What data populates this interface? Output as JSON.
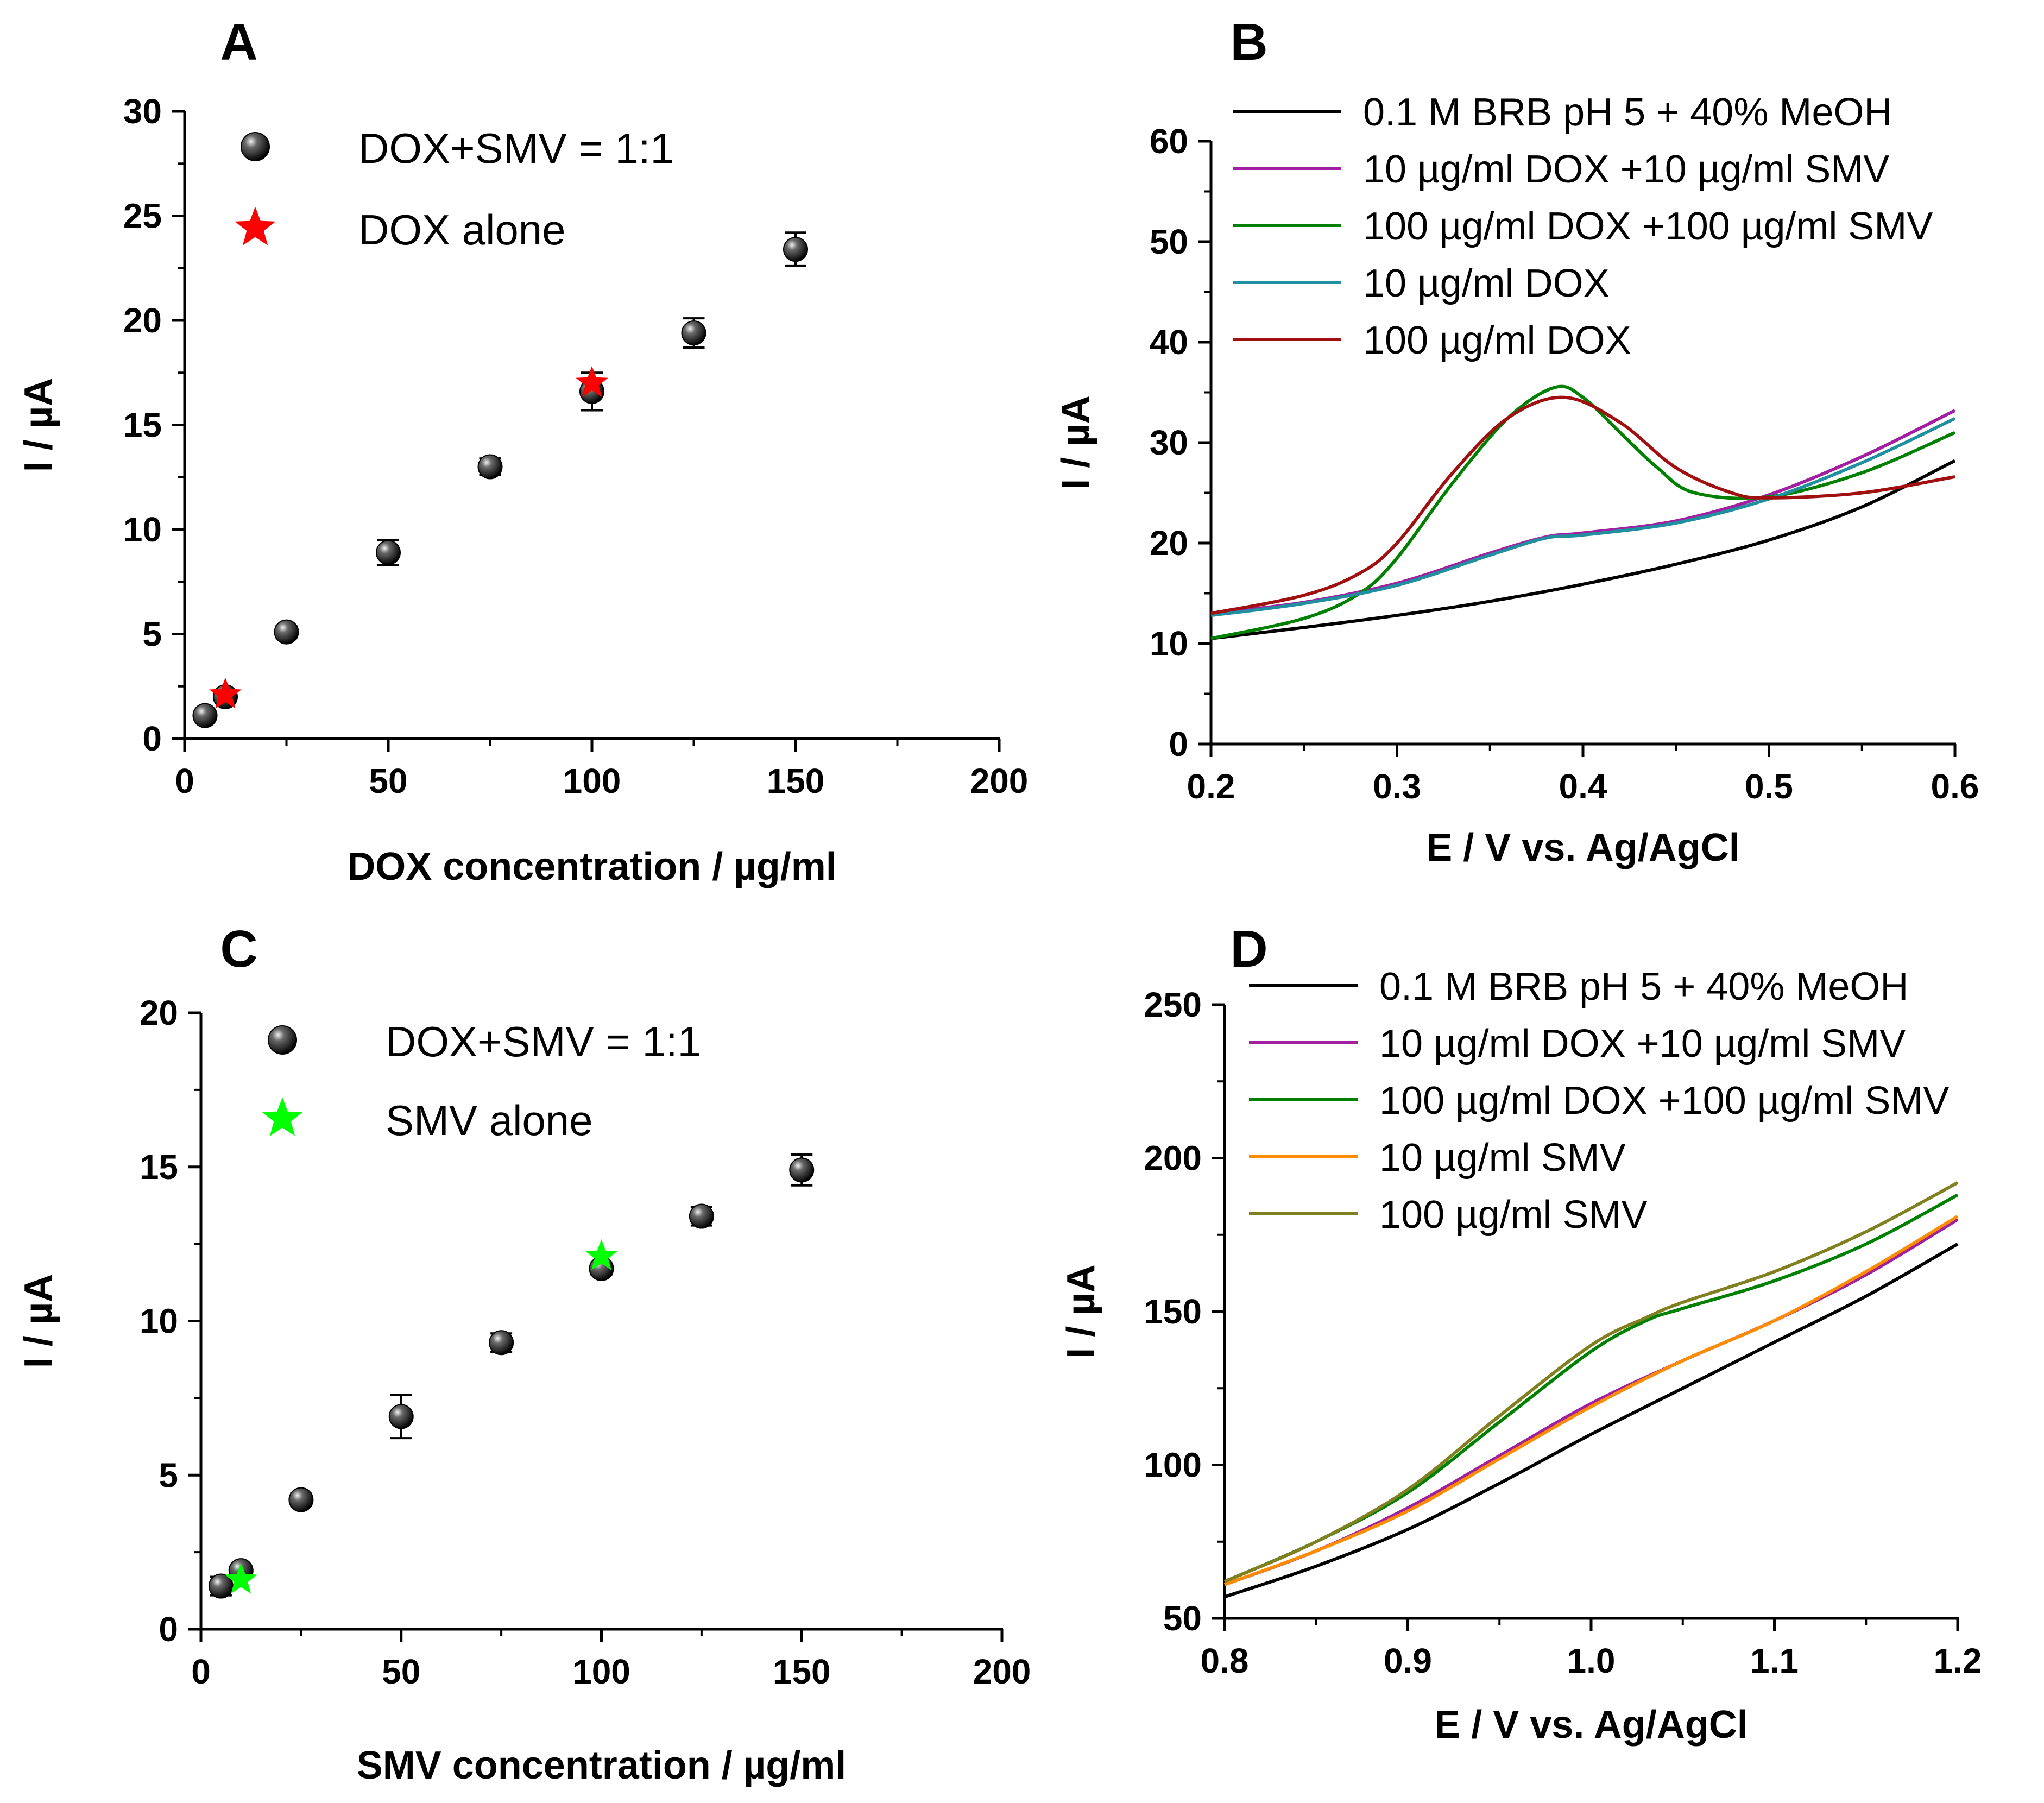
{
  "chart_data": [
    {
      "panel": "A",
      "type": "scatter",
      "xlabel": "DOX concentration / µg/ml",
      "ylabel": "I / µA",
      "xlim": [
        0,
        200
      ],
      "ylim": [
        0,
        30
      ],
      "xticks": [
        0,
        50,
        100,
        150,
        200
      ],
      "yticks": [
        0,
        5,
        10,
        15,
        20,
        25,
        30
      ],
      "legend": "top-left",
      "series": [
        {
          "name": "DOX+SMV = 1:1",
          "marker": "sphere",
          "color": "#000000",
          "x": [
            5,
            10,
            25,
            50,
            75,
            100,
            125,
            150
          ],
          "y": [
            1.1,
            2.0,
            5.1,
            8.9,
            13.0,
            16.6,
            19.4,
            23.4
          ],
          "err": [
            0.2,
            0.3,
            0.3,
            0.6,
            0.4,
            0.9,
            0.7,
            0.8
          ]
        },
        {
          "name": "DOX alone",
          "marker": "star",
          "color": "#ff0000",
          "x": [
            10,
            100
          ],
          "y": [
            2.1,
            17.0
          ]
        }
      ]
    },
    {
      "panel": "B",
      "type": "line",
      "xlabel": "E / V vs. Ag/AgCl",
      "ylabel": "I / µA",
      "xlim": [
        0.2,
        0.6
      ],
      "ylim": [
        0,
        60
      ],
      "xticks": [
        0.2,
        0.3,
        0.4,
        0.5,
        0.6
      ],
      "yticks": [
        0,
        10,
        20,
        30,
        40,
        50,
        60
      ],
      "legend": "top",
      "series": [
        {
          "name": "0.1 M BRB pH 5 + 40% MeOH",
          "color": "#000000",
          "x": [
            0.2,
            0.25,
            0.3,
            0.35,
            0.4,
            0.45,
            0.5,
            0.55,
            0.6
          ],
          "y": [
            10.5,
            11.6,
            12.8,
            14.2,
            15.9,
            17.9,
            20.3,
            23.6,
            28.2
          ]
        },
        {
          "name": "10 µg/ml DOX +10 µg/ml SMV",
          "color": "#a020a0",
          "x": [
            0.2,
            0.25,
            0.3,
            0.35,
            0.38,
            0.4,
            0.45,
            0.5,
            0.55,
            0.6
          ],
          "y": [
            13.0,
            14.1,
            16.0,
            19.0,
            20.6,
            21.0,
            22.2,
            24.8,
            28.6,
            33.2
          ]
        },
        {
          "name": "100 µg/ml DOX +100 µg/ml SMV",
          "color": "#008000",
          "x": [
            0.2,
            0.25,
            0.28,
            0.3,
            0.33,
            0.36,
            0.385,
            0.4,
            0.42,
            0.44,
            0.46,
            0.5,
            0.55,
            0.6
          ],
          "y": [
            10.5,
            12.5,
            15.0,
            18.5,
            26.0,
            32.5,
            35.5,
            34.5,
            31.0,
            27.5,
            25.0,
            24.6,
            27.0,
            31.0
          ]
        },
        {
          "name": "10 µg/ml DOX",
          "color": "#2090a0",
          "x": [
            0.2,
            0.25,
            0.3,
            0.35,
            0.38,
            0.4,
            0.45,
            0.5,
            0.55,
            0.6
          ],
          "y": [
            12.8,
            14.0,
            15.8,
            18.8,
            20.5,
            20.8,
            22.0,
            24.4,
            28.0,
            32.4
          ]
        },
        {
          "name": "100 µg/ml DOX",
          "color": "#a01010",
          "x": [
            0.2,
            0.25,
            0.28,
            0.3,
            0.33,
            0.36,
            0.39,
            0.42,
            0.45,
            0.48,
            0.5,
            0.55,
            0.6
          ],
          "y": [
            13.0,
            14.8,
            17.0,
            20.0,
            27.0,
            32.5,
            34.5,
            32.0,
            27.5,
            25.0,
            24.5,
            25.0,
            26.6
          ]
        }
      ]
    },
    {
      "panel": "C",
      "type": "scatter",
      "xlabel": "SMV concentration / µg/ml",
      "ylabel": "I / µA",
      "xlim": [
        0,
        200
      ],
      "ylim": [
        0,
        20
      ],
      "xticks": [
        0,
        50,
        100,
        150,
        200
      ],
      "yticks": [
        0,
        5,
        10,
        15,
        20
      ],
      "legend": "top-left",
      "series": [
        {
          "name": "DOX+SMV = 1:1",
          "marker": "sphere",
          "color": "#000000",
          "x": [
            5,
            10,
            25,
            50,
            75,
            100,
            125,
            150
          ],
          "y": [
            1.4,
            1.9,
            4.2,
            6.9,
            9.3,
            11.7,
            13.4,
            14.9
          ],
          "err": [
            0.3,
            0.1,
            0.2,
            0.7,
            0.3,
            0.2,
            0.3,
            0.5
          ]
        },
        {
          "name": "SMV alone",
          "marker": "star",
          "color": "#00ff00",
          "x": [
            10,
            100
          ],
          "y": [
            1.6,
            12.1
          ]
        }
      ]
    },
    {
      "panel": "D",
      "type": "line",
      "xlabel": "E / V vs. Ag/AgCl",
      "ylabel": "I / µA",
      "xlim": [
        0.8,
        1.2
      ],
      "ylim": [
        50,
        250
      ],
      "xticks": [
        0.8,
        0.9,
        1.0,
        1.1,
        1.2
      ],
      "xticklabels": [
        "0.8",
        "0.9",
        "1.0",
        "1.1",
        "1.2"
      ],
      "yticks": [
        50,
        100,
        150,
        200,
        250
      ],
      "legend": "top",
      "series": [
        {
          "name": "0.1 M BRB pH 5 + 40% MeOH",
          "color": "#000000",
          "x": [
            0.8,
            0.85,
            0.9,
            0.95,
            1.0,
            1.05,
            1.1,
            1.15,
            1.2
          ],
          "y": [
            57,
            67,
            79,
            94,
            110,
            125,
            140,
            155,
            172
          ]
        },
        {
          "name": "10 µg/ml DOX +10 µg/ml SMV",
          "color": "#a020a0",
          "x": [
            0.8,
            0.85,
            0.9,
            0.95,
            1.0,
            1.05,
            1.1,
            1.15,
            1.2
          ],
          "y": [
            61,
            72,
            86,
            103,
            120,
            134,
            147,
            162,
            180
          ]
        },
        {
          "name": "100 µg/ml DOX +100 µg/ml SMV",
          "color": "#008000",
          "x": [
            0.8,
            0.85,
            0.9,
            0.95,
            1.0,
            1.03,
            1.05,
            1.1,
            1.15,
            1.2
          ],
          "y": [
            62,
            75,
            91,
            114,
            137,
            147,
            151,
            160,
            172,
            188
          ]
        },
        {
          "name": "10 µg/ml SMV",
          "color": "#ff8c00",
          "x": [
            0.8,
            0.85,
            0.9,
            0.95,
            1.0,
            1.05,
            1.1,
            1.15,
            1.2
          ],
          "y": [
            61,
            72,
            85,
            102,
            119,
            134,
            147,
            163,
            181
          ]
        },
        {
          "name": "100 µg/ml SMV",
          "color": "#808020",
          "x": [
            0.8,
            0.85,
            0.9,
            0.95,
            1.0,
            1.03,
            1.05,
            1.1,
            1.15,
            1.2
          ],
          "y": [
            62,
            75,
            92,
            116,
            139,
            148,
            153,
            163,
            176,
            192
          ]
        }
      ]
    }
  ]
}
